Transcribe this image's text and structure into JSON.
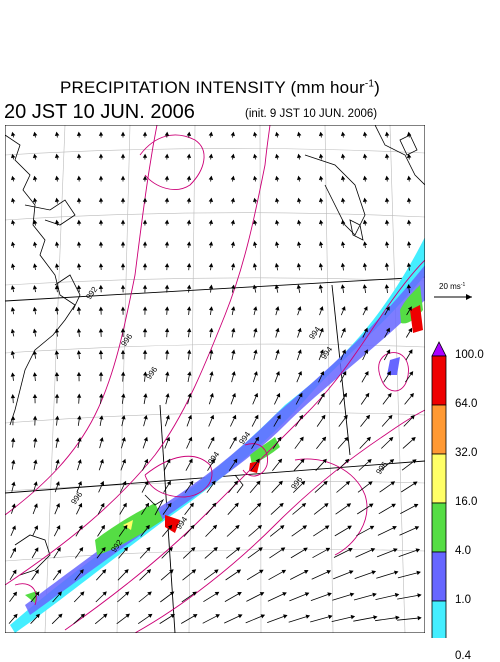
{
  "title": {
    "main": "PRECIPITATION INTENSITY (mm hour",
    "superscript": "-1",
    "close": ")"
  },
  "valid_time": "20 JST 10 JUN. 2006",
  "init_time": "(init. 9 JST 10 JUN. 2006)",
  "reference_vector": {
    "label": "20 ms",
    "superscript": "-1"
  },
  "colorbar": {
    "labels": [
      "100.0",
      "64.0",
      "32.0",
      "16.0",
      "4.0",
      "1.0",
      "0.4"
    ],
    "colors": [
      "#aa00ff",
      "#ee0000",
      "#ff9933",
      "#ffff66",
      "#55dd44",
      "#6666ff",
      "#44eeff"
    ]
  },
  "pressure_labels": [
    "992",
    "996",
    "996",
    "996",
    "994",
    "994",
    "996",
    "994",
    "994",
    "992",
    "994",
    "996"
  ],
  "colors": {
    "isobar": "#cc0077",
    "coastline": "#000000",
    "grid": "#bbbbbb"
  }
}
